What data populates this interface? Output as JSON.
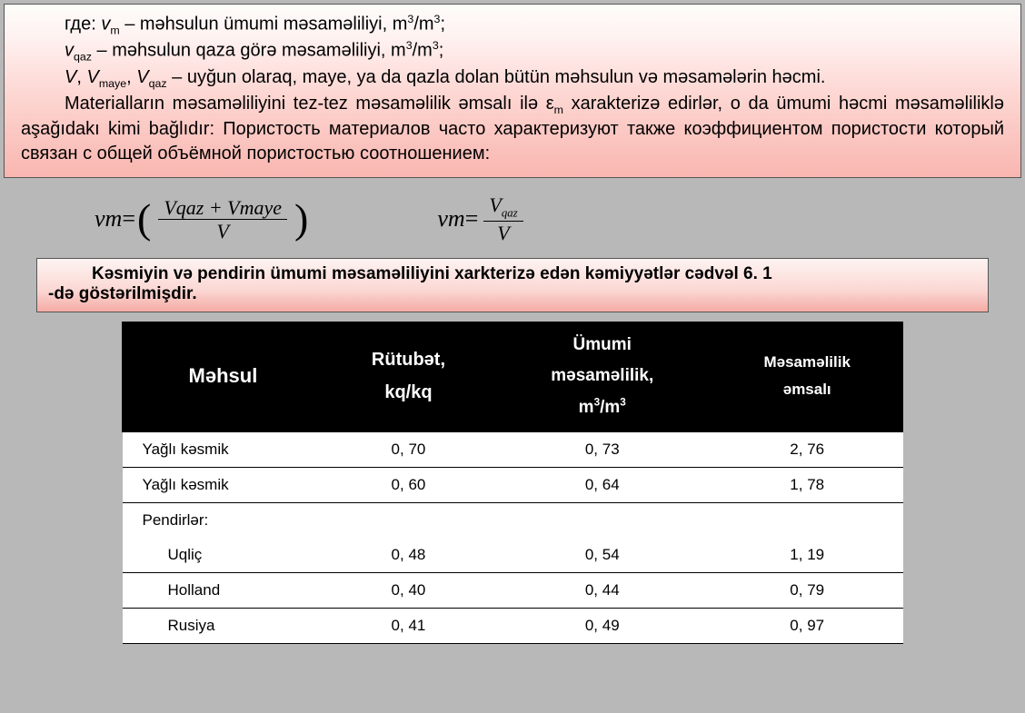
{
  "topbox": {
    "line1_a": "где: ",
    "line1_b": "v",
    "line1_sub": "m",
    "line1_c": " – məhsulun ümumi məsaməliliyi, m",
    "line1_d": "/m",
    "line1_e": ";",
    "line2_a": "v",
    "line2_sub": "qaz",
    "line2_b": " – məhsulun qaza görə məsaməliliyi, m",
    "line2_c": "/m",
    "line2_d": ";",
    "line3_a": "V",
    "line3_b": ", ",
    "line3_c": "V",
    "line3_sub1": "maye",
    "line3_d": ", ",
    "line3_e": "V",
    "line3_sub2": "qaz",
    "line3_f": " – uyğun olaraq, maye, ya da qazla dolan bütün məhsulun və məsamələrin həcmi.",
    "para2_a": "Materialların məsaməliliyini tez-tez məsaməlilik əmsalı ilə ε",
    "para2_sub": "m",
    "para2_b": " xarakterizə edirlər, o da ümumi həcmi məsaməliliklə aşağıdakı kimi bağlıdır: Пористость материалов часто характеризуют также коэффициентом пористости который связан с общей объёмной пористостью соотношением:"
  },
  "formulas": {
    "f1_lhs": "vm",
    "f1_eq": " = ",
    "f1_num": "Vqaz + Vmaye",
    "f1_den": "V",
    "f2_lhs": "vm",
    "f2_eq": " = ",
    "f2_num1": "V",
    "f2_numsub": "qaz",
    "f2_den": "V"
  },
  "midbox": {
    "l1": "Kəsmiyin və pendirin ümumi məsaməliliyini xarkterizə edən kəmiyyətlər cədvəl 6. 1",
    "l2": "-də göstərilmişdir."
  },
  "table": {
    "header": {
      "c1": "Məhsul",
      "c2a": "Rütubət,",
      "c2b": "kq/kq",
      "c3a": "Ümumi",
      "c3b": "məsaməlilik,",
      "c3c_a": "m",
      "c3c_b": "/m",
      "c4a": "Məsaməlilik",
      "c4b": "əmsalı"
    },
    "rows": [
      {
        "c1": "Yağlı kəsmik",
        "c2": "0, 70",
        "c3": "0, 73",
        "c4": "2, 76",
        "indent": false
      },
      {
        "c1": "Yağlı kəsmik",
        "c2": "0, 60",
        "c3": "0, 64",
        "c4": "1, 78",
        "indent": false
      },
      {
        "c1": "Pendirlər:",
        "c2": "",
        "c3": "",
        "c4": "",
        "indent": false,
        "section": true
      },
      {
        "c1": "Uqliç",
        "c2": "0, 48",
        "c3": "0, 54",
        "c4": "1, 19",
        "indent": true
      },
      {
        "c1": "Holland",
        "c2": "0, 40",
        "c3": "0, 44",
        "c4": "0, 79",
        "indent": true
      },
      {
        "c1": "Rusiya",
        "c2": "0, 41",
        "c3": "0, 49",
        "c4": "0, 97",
        "indent": true
      }
    ]
  },
  "sup3": "3"
}
